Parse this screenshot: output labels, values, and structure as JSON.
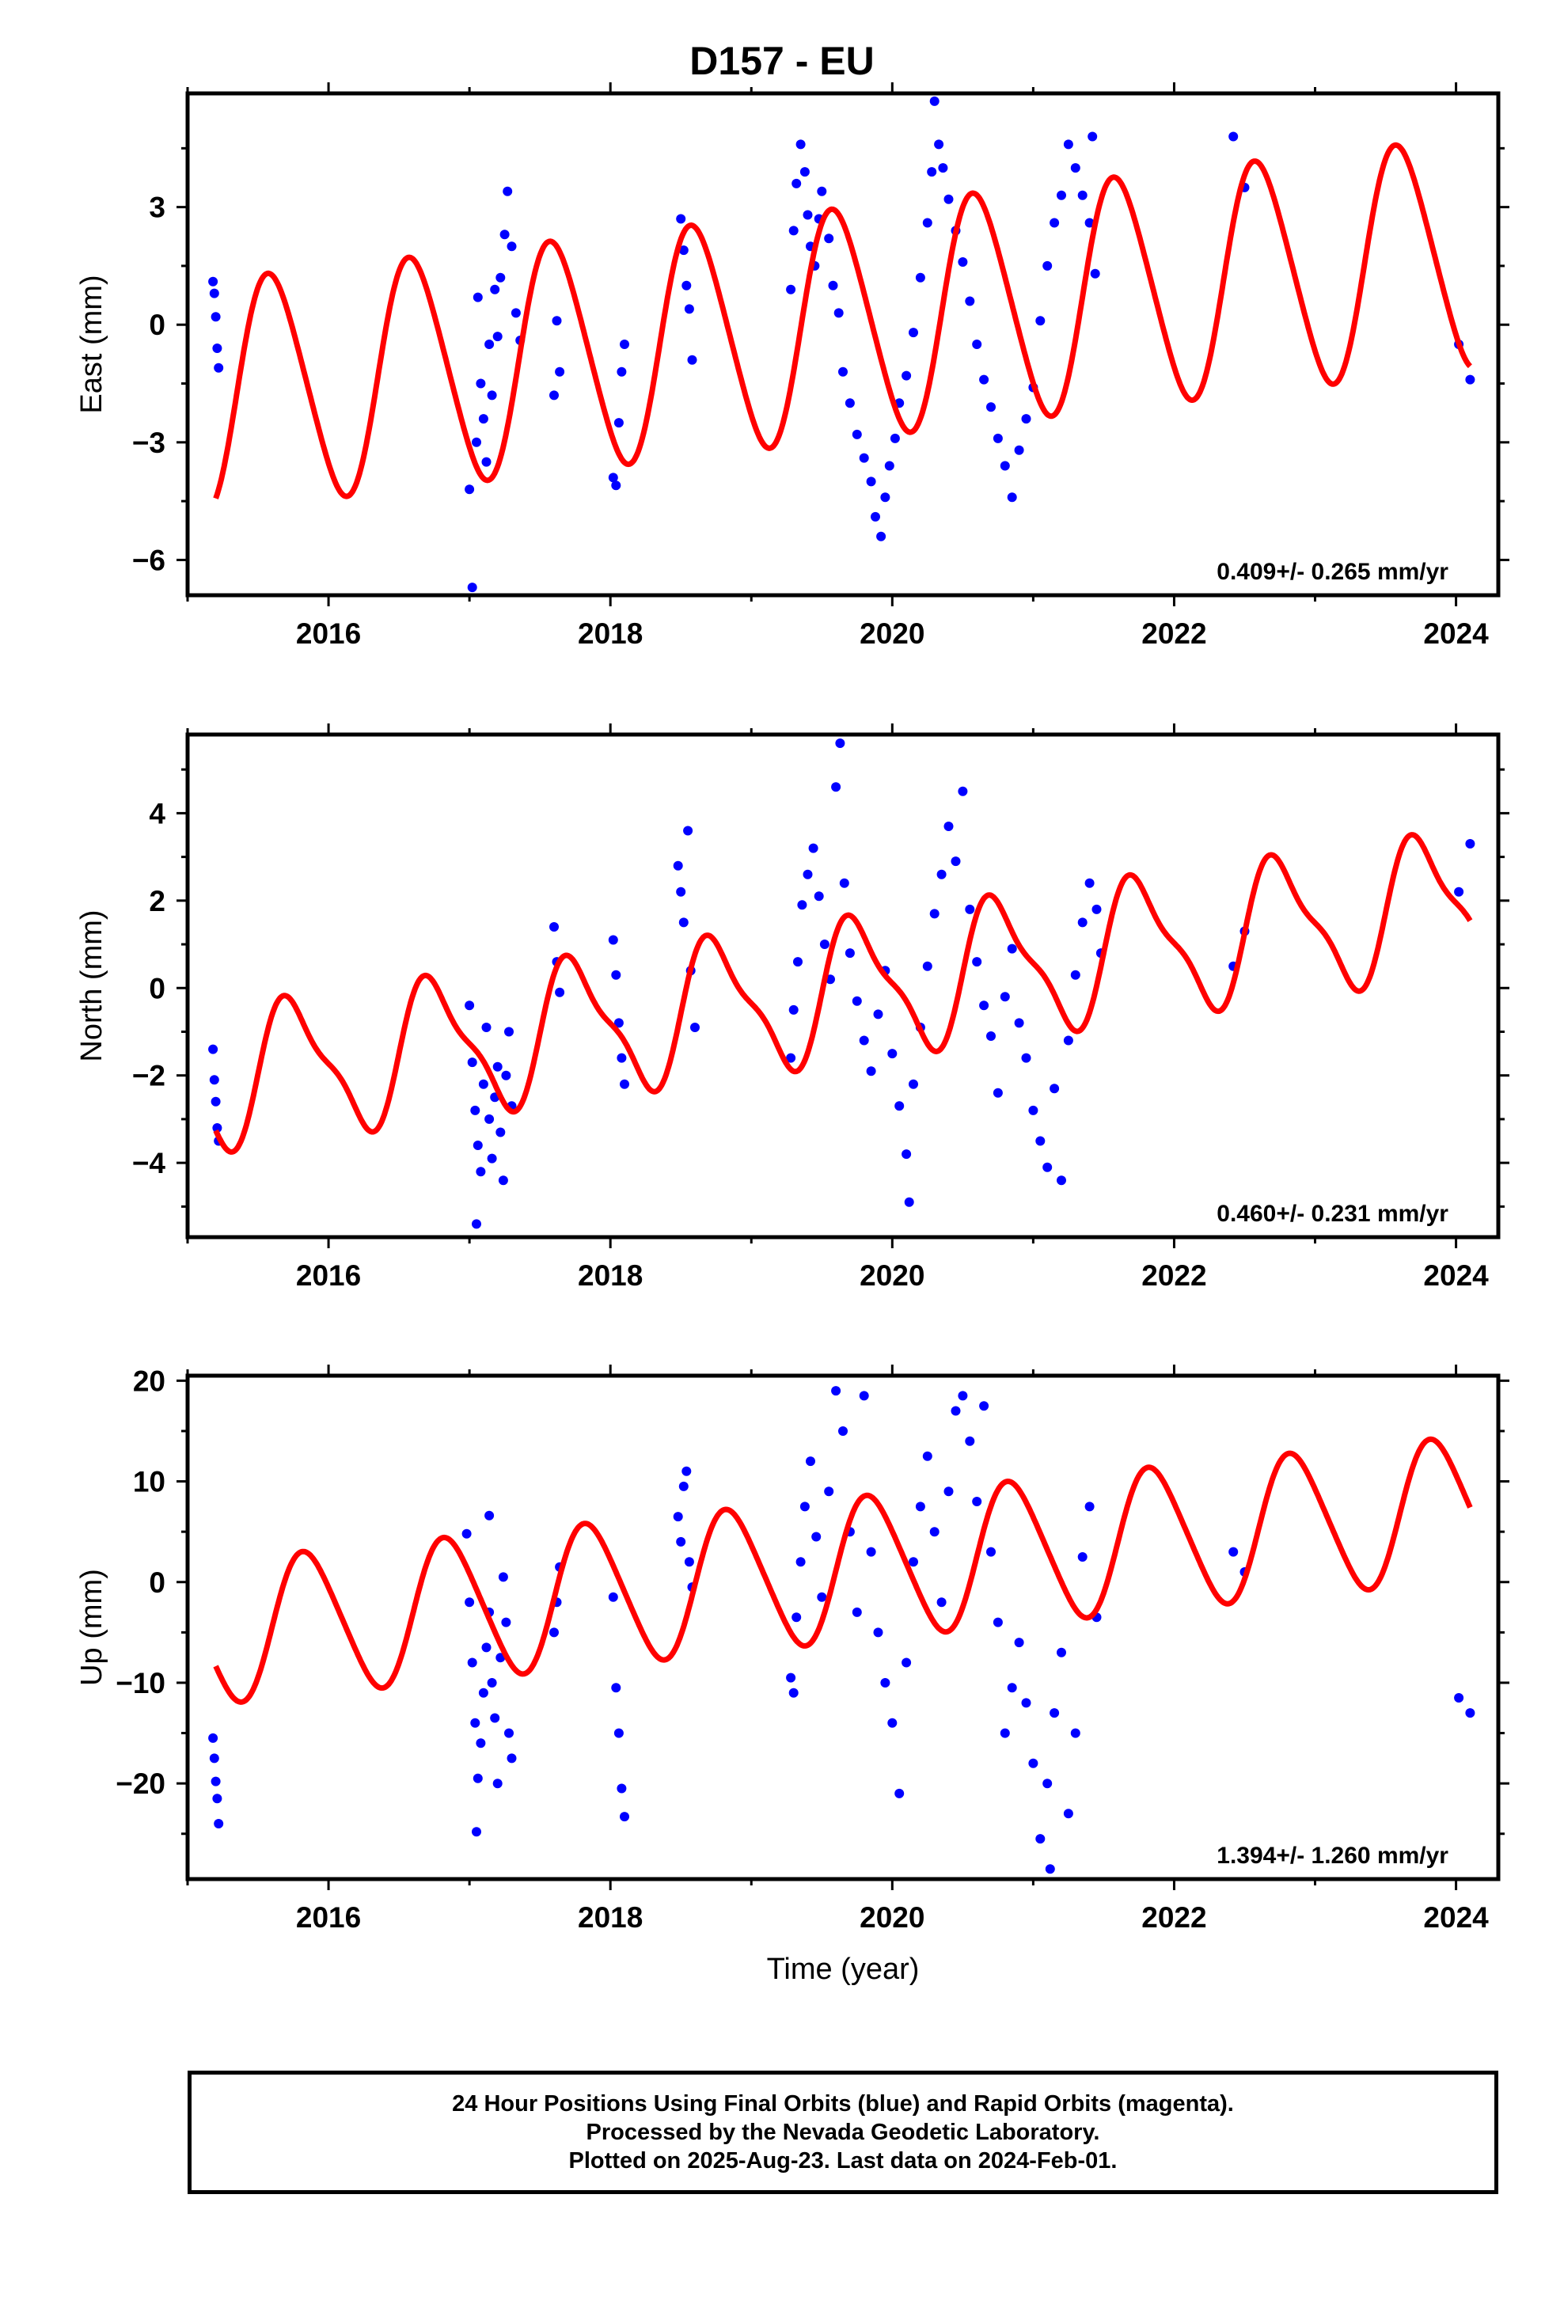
{
  "title": "D157 - EU",
  "caption_lines": [
    "24 Hour Positions Using Final Orbits (blue) and Rapid Orbits (magenta).",
    "Processed by the Nevada Geodetic Laboratory.",
    "Plotted on 2025-Aug-23. Last data on 2024-Feb-01."
  ],
  "colors": {
    "data": "#0000ff",
    "model": "#ff0000",
    "axis": "#000000"
  },
  "chart_data": [
    {
      "type": "scatter",
      "panel": "East",
      "ylabel": "East (mm)",
      "xlabel": "",
      "xlim": [
        2015.0,
        2024.3
      ],
      "ylim": [
        -6.9,
        5.9
      ],
      "xticks": [
        2016,
        2018,
        2020,
        2022,
        2024
      ],
      "yticks": [
        -6,
        -3,
        0,
        3
      ],
      "rate_label": "0.409+/- 0.265 mm/yr",
      "model": {
        "offset": -1.8,
        "rate": 0.409,
        "t0": 2015.2,
        "annual_amp": 2.9,
        "annual_phase_year": 2015.35,
        "semi_amp": 0.3
      },
      "points": [
        [
          2015.18,
          1.1
        ],
        [
          2015.19,
          0.8
        ],
        [
          2015.2,
          0.2
        ],
        [
          2015.21,
          -0.6
        ],
        [
          2015.22,
          -1.1
        ],
        [
          2017.0,
          -4.2
        ],
        [
          2017.02,
          -6.7
        ],
        [
          2017.05,
          -3.0
        ],
        [
          2017.06,
          0.7
        ],
        [
          2017.08,
          -1.5
        ],
        [
          2017.1,
          -2.4
        ],
        [
          2017.12,
          -3.5
        ],
        [
          2017.14,
          -0.5
        ],
        [
          2017.16,
          -1.8
        ],
        [
          2017.18,
          0.9
        ],
        [
          2017.2,
          -0.3
        ],
        [
          2017.22,
          1.2
        ],
        [
          2017.25,
          2.3
        ],
        [
          2017.27,
          3.4
        ],
        [
          2017.3,
          2.0
        ],
        [
          2017.33,
          0.3
        ],
        [
          2017.36,
          -0.4
        ],
        [
          2017.6,
          -1.8
        ],
        [
          2017.62,
          0.1
        ],
        [
          2017.64,
          -1.2
        ],
        [
          2018.02,
          -3.9
        ],
        [
          2018.04,
          -4.1
        ],
        [
          2018.06,
          -2.5
        ],
        [
          2018.08,
          -1.2
        ],
        [
          2018.1,
          -0.5
        ],
        [
          2018.5,
          2.7
        ],
        [
          2018.52,
          1.9
        ],
        [
          2018.54,
          1.0
        ],
        [
          2018.56,
          0.4
        ],
        [
          2018.58,
          -0.9
        ],
        [
          2019.28,
          0.9
        ],
        [
          2019.3,
          2.4
        ],
        [
          2019.32,
          3.6
        ],
        [
          2019.35,
          4.6
        ],
        [
          2019.38,
          3.9
        ],
        [
          2019.4,
          2.8
        ],
        [
          2019.42,
          2.0
        ],
        [
          2019.45,
          1.5
        ],
        [
          2019.48,
          2.7
        ],
        [
          2019.5,
          3.4
        ],
        [
          2019.55,
          2.2
        ],
        [
          2019.58,
          1.0
        ],
        [
          2019.62,
          0.3
        ],
        [
          2019.65,
          -1.2
        ],
        [
          2019.7,
          -2.0
        ],
        [
          2019.75,
          -2.8
        ],
        [
          2019.8,
          -3.4
        ],
        [
          2019.85,
          -4.0
        ],
        [
          2019.88,
          -4.9
        ],
        [
          2019.92,
          -5.4
        ],
        [
          2019.95,
          -4.4
        ],
        [
          2019.98,
          -3.6
        ],
        [
          2020.02,
          -2.9
        ],
        [
          2020.05,
          -2.0
        ],
        [
          2020.1,
          -1.3
        ],
        [
          2020.15,
          -0.2
        ],
        [
          2020.2,
          1.2
        ],
        [
          2020.25,
          2.6
        ],
        [
          2020.28,
          3.9
        ],
        [
          2020.3,
          5.7
        ],
        [
          2020.33,
          4.6
        ],
        [
          2020.36,
          4.0
        ],
        [
          2020.4,
          3.2
        ],
        [
          2020.45,
          2.4
        ],
        [
          2020.5,
          1.6
        ],
        [
          2020.55,
          0.6
        ],
        [
          2020.6,
          -0.5
        ],
        [
          2020.65,
          -1.4
        ],
        [
          2020.7,
          -2.1
        ],
        [
          2020.75,
          -2.9
        ],
        [
          2020.8,
          -3.6
        ],
        [
          2020.85,
          -4.4
        ],
        [
          2020.9,
          -3.2
        ],
        [
          2020.95,
          -2.4
        ],
        [
          2021.0,
          -1.6
        ],
        [
          2021.05,
          0.1
        ],
        [
          2021.1,
          1.5
        ],
        [
          2021.15,
          2.6
        ],
        [
          2021.2,
          3.3
        ],
        [
          2021.25,
          4.6
        ],
        [
          2021.3,
          4.0
        ],
        [
          2021.35,
          3.3
        ],
        [
          2021.4,
          2.6
        ],
        [
          2021.42,
          4.8
        ],
        [
          2021.44,
          1.3
        ],
        [
          2022.42,
          4.8
        ],
        [
          2022.5,
          3.5
        ],
        [
          2024.02,
          -0.5
        ],
        [
          2024.1,
          -1.4
        ]
      ]
    },
    {
      "type": "scatter",
      "panel": "North",
      "ylabel": "North (mm)",
      "xlabel": "",
      "xlim": [
        2015.0,
        2024.3
      ],
      "ylim": [
        -5.7,
        5.8
      ],
      "xticks": [
        2016,
        2018,
        2020,
        2022,
        2024
      ],
      "yticks": [
        -4,
        -2,
        0,
        2,
        4
      ],
      "rate_label": "0.460+/- 0.231 mm/yr",
      "model": {
        "offset": -2.1,
        "rate": 0.46,
        "t0": 2015.2,
        "annual_amp": 1.5,
        "annual_phase_year": 2015.5,
        "semi_amp": 0.45
      },
      "points": [
        [
          2015.18,
          -1.4
        ],
        [
          2015.19,
          -2.1
        ],
        [
          2015.2,
          -2.6
        ],
        [
          2015.21,
          -3.2
        ],
        [
          2015.22,
          -3.5
        ],
        [
          2017.0,
          -0.4
        ],
        [
          2017.02,
          -1.7
        ],
        [
          2017.04,
          -2.8
        ],
        [
          2017.06,
          -3.6
        ],
        [
          2017.08,
          -4.2
        ],
        [
          2017.1,
          -2.2
        ],
        [
          2017.12,
          -0.9
        ],
        [
          2017.14,
          -3.0
        ],
        [
          2017.16,
          -3.9
        ],
        [
          2017.18,
          -2.5
        ],
        [
          2017.2,
          -1.8
        ],
        [
          2017.22,
          -3.3
        ],
        [
          2017.24,
          -4.4
        ],
        [
          2017.26,
          -2.0
        ],
        [
          2017.28,
          -1.0
        ],
        [
          2017.3,
          -2.7
        ],
        [
          2017.05,
          -5.4
        ],
        [
          2017.6,
          1.4
        ],
        [
          2017.62,
          0.6
        ],
        [
          2017.64,
          -0.1
        ],
        [
          2018.02,
          1.1
        ],
        [
          2018.04,
          0.3
        ],
        [
          2018.06,
          -0.8
        ],
        [
          2018.08,
          -1.6
        ],
        [
          2018.1,
          -2.2
        ],
        [
          2018.48,
          2.8
        ],
        [
          2018.5,
          2.2
        ],
        [
          2018.52,
          1.5
        ],
        [
          2018.55,
          3.6
        ],
        [
          2018.57,
          0.4
        ],
        [
          2018.6,
          -0.9
        ],
        [
          2019.28,
          -1.6
        ],
        [
          2019.3,
          -0.5
        ],
        [
          2019.33,
          0.6
        ],
        [
          2019.36,
          1.9
        ],
        [
          2019.4,
          2.6
        ],
        [
          2019.44,
          3.2
        ],
        [
          2019.48,
          2.1
        ],
        [
          2019.52,
          1.0
        ],
        [
          2019.56,
          0.2
        ],
        [
          2019.6,
          4.6
        ],
        [
          2019.63,
          5.6
        ],
        [
          2019.66,
          2.4
        ],
        [
          2019.7,
          0.8
        ],
        [
          2019.75,
          -0.3
        ],
        [
          2019.8,
          -1.2
        ],
        [
          2019.85,
          -1.9
        ],
        [
          2019.9,
          -0.6
        ],
        [
          2019.95,
          0.4
        ],
        [
          2020.0,
          -1.5
        ],
        [
          2020.05,
          -2.7
        ],
        [
          2020.1,
          -3.8
        ],
        [
          2020.12,
          -4.9
        ],
        [
          2020.15,
          -2.2
        ],
        [
          2020.2,
          -0.9
        ],
        [
          2020.25,
          0.5
        ],
        [
          2020.3,
          1.7
        ],
        [
          2020.35,
          2.6
        ],
        [
          2020.4,
          3.7
        ],
        [
          2020.45,
          2.9
        ],
        [
          2020.5,
          4.5
        ],
        [
          2020.55,
          1.8
        ],
        [
          2020.6,
          0.6
        ],
        [
          2020.65,
          -0.4
        ],
        [
          2020.7,
          -1.1
        ],
        [
          2020.75,
          -2.4
        ],
        [
          2020.8,
          -0.2
        ],
        [
          2020.85,
          0.9
        ],
        [
          2020.9,
          -0.8
        ],
        [
          2020.95,
          -1.6
        ],
        [
          2021.0,
          -2.8
        ],
        [
          2021.05,
          -3.5
        ],
        [
          2021.1,
          -4.1
        ],
        [
          2021.15,
          -2.3
        ],
        [
          2021.2,
          -4.4
        ],
        [
          2021.25,
          -1.2
        ],
        [
          2021.3,
          0.3
        ],
        [
          2021.35,
          1.5
        ],
        [
          2021.4,
          2.4
        ],
        [
          2021.45,
          1.8
        ],
        [
          2021.48,
          0.8
        ],
        [
          2022.42,
          0.5
        ],
        [
          2022.5,
          1.3
        ],
        [
          2024.02,
          2.2
        ],
        [
          2024.1,
          3.3
        ]
      ]
    },
    {
      "type": "scatter",
      "panel": "Up",
      "ylabel": "Up (mm)",
      "xlabel": "Time (year)",
      "xlim": [
        2015.0,
        2024.3
      ],
      "ylim": [
        -29.5,
        20.5
      ],
      "xticks": [
        2016,
        2018,
        2020,
        2022,
        2024
      ],
      "yticks": [
        -20,
        -10,
        0,
        10,
        20
      ],
      "rate_label": "1.394+/- 1.260 mm/yr",
      "model": {
        "offset": -5.0,
        "rate": 1.394,
        "t0": 2015.2,
        "annual_amp": 7.0,
        "annual_phase_year": 2015.6,
        "semi_amp": 0.8
      },
      "points": [
        [
          2015.18,
          -15.5
        ],
        [
          2015.19,
          -17.5
        ],
        [
          2015.2,
          -19.8
        ],
        [
          2015.21,
          -21.5
        ],
        [
          2015.22,
          -24.0
        ],
        [
          2016.98,
          4.8
        ],
        [
          2017.0,
          -2.0
        ],
        [
          2017.02,
          -8.0
        ],
        [
          2017.04,
          -14.0
        ],
        [
          2017.05,
          -24.8
        ],
        [
          2017.06,
          -19.5
        ],
        [
          2017.08,
          -16.0
        ],
        [
          2017.1,
          -11.0
        ],
        [
          2017.12,
          -6.5
        ],
        [
          2017.14,
          -3.0
        ],
        [
          2017.16,
          -10.0
        ],
        [
          2017.18,
          -13.5
        ],
        [
          2017.2,
          -20.0
        ],
        [
          2017.22,
          -7.5
        ],
        [
          2017.24,
          0.5
        ],
        [
          2017.26,
          -4.0
        ],
        [
          2017.28,
          -15.0
        ],
        [
          2017.3,
          -17.5
        ],
        [
          2017.14,
          6.6
        ],
        [
          2017.6,
          -5.0
        ],
        [
          2017.62,
          -2.0
        ],
        [
          2017.64,
          1.5
        ],
        [
          2018.02,
          -1.5
        ],
        [
          2018.04,
          -10.5
        ],
        [
          2018.06,
          -15.0
        ],
        [
          2018.08,
          -20.5
        ],
        [
          2018.1,
          -23.3
        ],
        [
          2018.48,
          6.5
        ],
        [
          2018.5,
          4.0
        ],
        [
          2018.52,
          9.5
        ],
        [
          2018.54,
          11.0
        ],
        [
          2018.56,
          2.0
        ],
        [
          2018.58,
          -0.5
        ],
        [
          2019.28,
          -9.5
        ],
        [
          2019.3,
          -11.0
        ],
        [
          2019.32,
          -3.5
        ],
        [
          2019.35,
          2.0
        ],
        [
          2019.38,
          7.5
        ],
        [
          2019.42,
          12.0
        ],
        [
          2019.46,
          4.5
        ],
        [
          2019.5,
          -1.5
        ],
        [
          2019.55,
          9.0
        ],
        [
          2019.6,
          19.0
        ],
        [
          2019.65,
          15.0
        ],
        [
          2019.7,
          5.0
        ],
        [
          2019.75,
          -3.0
        ],
        [
          2019.8,
          18.5
        ],
        [
          2019.85,
          3.0
        ],
        [
          2019.9,
          -5.0
        ],
        [
          2019.95,
          -10.0
        ],
        [
          2020.0,
          -14.0
        ],
        [
          2020.05,
          -21.0
        ],
        [
          2020.1,
          -8.0
        ],
        [
          2020.15,
          2.0
        ],
        [
          2020.2,
          7.5
        ],
        [
          2020.25,
          12.5
        ],
        [
          2020.3,
          5.0
        ],
        [
          2020.35,
          -2.0
        ],
        [
          2020.4,
          9.0
        ],
        [
          2020.45,
          17.0
        ],
        [
          2020.5,
          18.5
        ],
        [
          2020.55,
          14.0
        ],
        [
          2020.6,
          8.0
        ],
        [
          2020.65,
          17.5
        ],
        [
          2020.7,
          3.0
        ],
        [
          2020.75,
          -4.0
        ],
        [
          2020.8,
          -15.0
        ],
        [
          2020.85,
          -10.5
        ],
        [
          2020.9,
          -6.0
        ],
        [
          2020.95,
          -12.0
        ],
        [
          2021.0,
          -18.0
        ],
        [
          2021.05,
          -25.5
        ],
        [
          2021.1,
          -20.0
        ],
        [
          2021.12,
          -28.5
        ],
        [
          2021.15,
          -13.0
        ],
        [
          2021.2,
          -7.0
        ],
        [
          2021.25,
          -23.0
        ],
        [
          2021.3,
          -15.0
        ],
        [
          2021.35,
          2.5
        ],
        [
          2021.4,
          7.5
        ],
        [
          2021.45,
          -3.5
        ],
        [
          2022.42,
          3.0
        ],
        [
          2022.5,
          1.0
        ],
        [
          2024.02,
          -11.5
        ],
        [
          2024.1,
          -13.0
        ]
      ]
    }
  ]
}
